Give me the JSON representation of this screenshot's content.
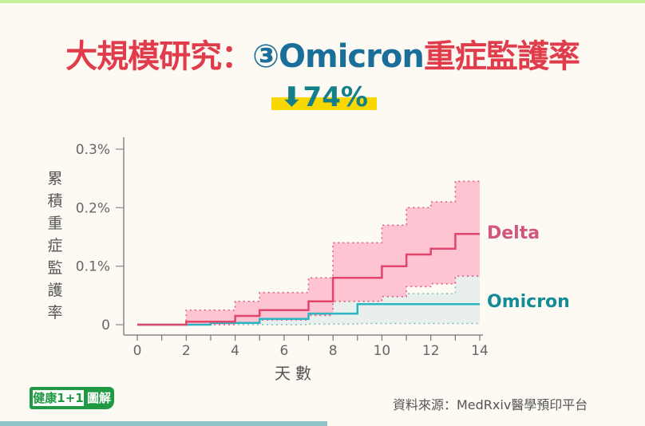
{
  "header": {
    "title_part1": "大規模研究：",
    "title_circled": "③Omicron",
    "title_part2": "重症監護率",
    "subtitle": "⬇74%"
  },
  "colors": {
    "title_red": "#e13c4c",
    "title_blue": "#1a6f9a",
    "delta": "#e0456b",
    "delta_ci": "#ffbfcf",
    "omicron": "#2bb5c3",
    "omicron_ci": "#e8efec",
    "highlight": "#f8d800"
  },
  "footer": {
    "logo_main": "健康1+1",
    "logo_side": "圖解",
    "source": "資料來源：MedRxiv醫學預印平台"
  },
  "chart_data": {
    "type": "line",
    "subtype": "step (Kaplan-Meier cumulative incidence) with confidence bands",
    "title": "大規模研究：③Omicron重症監護率",
    "annotation": "⬇74%",
    "xlabel": "天數",
    "ylabel": "累積重症監護率",
    "x_ticks": [
      "0",
      "2",
      "4",
      "6",
      "8",
      "10",
      "12",
      "14"
    ],
    "y_ticks": [
      "0",
      "0.1%",
      "0.2%",
      "0.3%"
    ],
    "xlim": [
      0,
      14
    ],
    "ylim": [
      0,
      0.3
    ],
    "grid": false,
    "legend_position": "right, inline at line ends",
    "series": [
      {
        "name": "Delta",
        "x": [
          0,
          2,
          4,
          5,
          7,
          8,
          10,
          11,
          12,
          13,
          14
        ],
        "y": [
          0,
          0.005,
          0.015,
          0.025,
          0.04,
          0.08,
          0.1,
          0.12,
          0.13,
          0.155,
          0.155
        ],
        "upper": [
          0,
          0.025,
          0.04,
          0.055,
          0.08,
          0.14,
          0.17,
          0.2,
          0.21,
          0.245,
          0.245
        ],
        "lower": [
          0,
          0.0,
          0.003,
          0.008,
          0.016,
          0.04,
          0.048,
          0.065,
          0.07,
          0.083,
          0.083
        ]
      },
      {
        "name": "Omicron",
        "x": [
          0,
          3,
          5,
          7,
          8,
          9,
          10,
          13,
          14
        ],
        "y": [
          0,
          0.003,
          0.01,
          0.019,
          0.019,
          0.035,
          0.035,
          0.035,
          0.035
        ],
        "upper": [
          0,
          0.006,
          0.019,
          0.034,
          0.04,
          0.04,
          0.053,
          0.083,
          0.083
        ],
        "lower": [
          0,
          0.0,
          0.0,
          0.001,
          0.001,
          0.002,
          0.002,
          0.002,
          0.002
        ]
      }
    ]
  }
}
